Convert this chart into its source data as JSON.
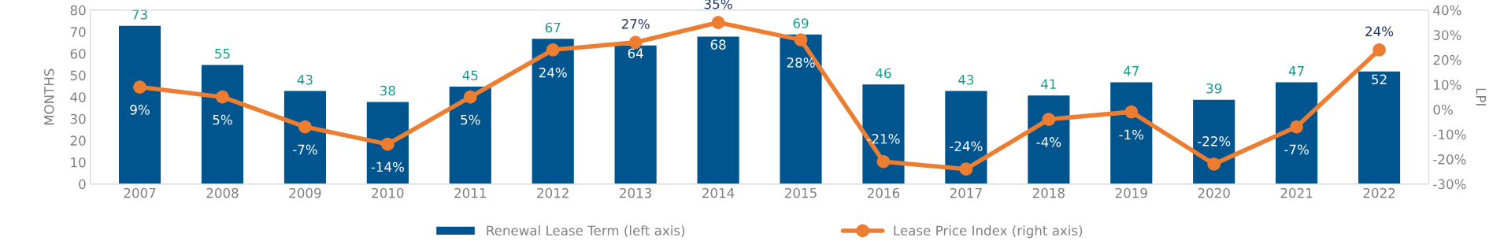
{
  "chart_data": {
    "type": "bar",
    "categories": [
      "2007",
      "2008",
      "2009",
      "2010",
      "2011",
      "2012",
      "2013",
      "2014",
      "2015",
      "2016",
      "2017",
      "2018",
      "2019",
      "2020",
      "2021",
      "2022"
    ],
    "ylabel": "MONTHS",
    "y2label": "LPI",
    "series": [
      {
        "name": "Renewal Lease Term (left axis)",
        "color": "#00558f",
        "values": [
          73,
          55,
          43,
          38,
          45,
          67,
          64,
          68,
          69,
          46,
          43,
          41,
          47,
          39,
          47,
          52
        ]
      },
      {
        "name": "Lease Price Index (right axis)",
        "type": "line",
        "axis": "y2",
        "color": "#ed7d31",
        "marker": "circle",
        "values": [
          9,
          5,
          -7,
          -14,
          5,
          24,
          27,
          35,
          28,
          -21,
          -24,
          -4,
          -1,
          -22,
          -7,
          24
        ],
        "value_labels": [
          "9%",
          "5%",
          "-7%",
          "-14%",
          "5%",
          "24%",
          "27%",
          "35%",
          "28%",
          "-21%",
          "-24%",
          "-4%",
          "-1%",
          "-22%",
          "-7%",
          "24%"
        ]
      }
    ],
    "ylim": [
      0,
      80
    ],
    "yticks": [
      0,
      10,
      20,
      30,
      40,
      50,
      60,
      70,
      80
    ],
    "y2lim": [
      -30,
      40
    ],
    "y2ticks": [
      {
        "value": -30,
        "label": "-30%"
      },
      {
        "value": -20,
        "label": "-20%"
      },
      {
        "value": -10,
        "label": "-10%"
      },
      {
        "value": 0,
        "label": "0%"
      },
      {
        "value": 10,
        "label": "10%"
      },
      {
        "value": 20,
        "label": "20%"
      },
      {
        "value": 30,
        "label": "30%"
      },
      {
        "value": 40,
        "label": "40%"
      }
    ],
    "data_labels": true,
    "legend": "bottom",
    "grid": false
  }
}
